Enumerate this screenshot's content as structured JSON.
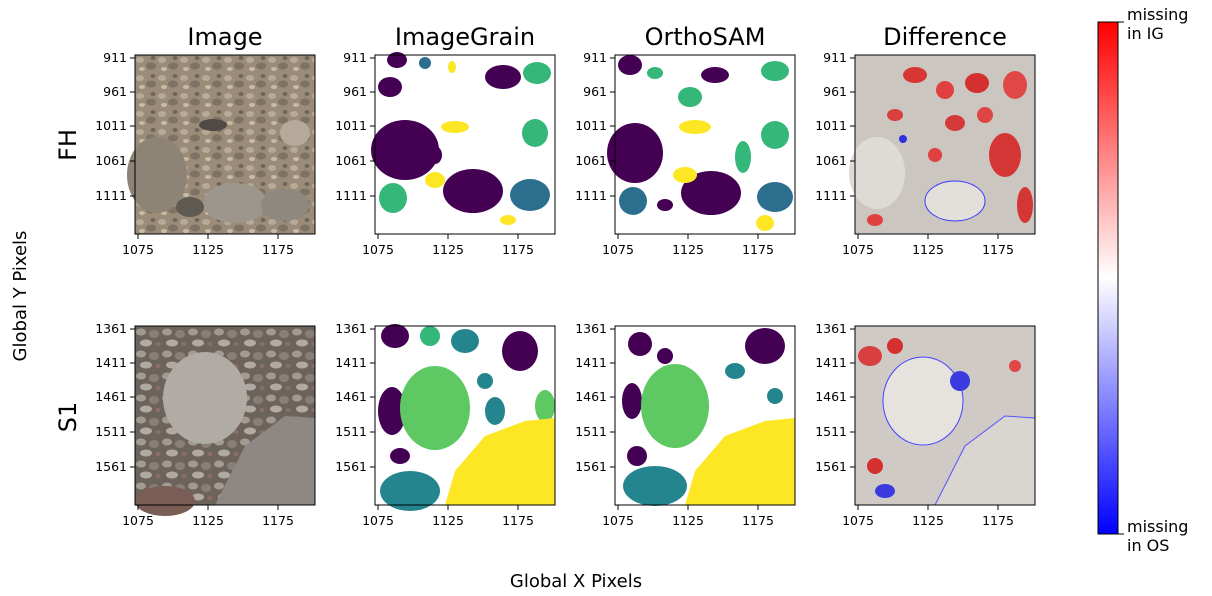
{
  "figure": {
    "column_titles": [
      "Image",
      "ImageGrain",
      "OrthoSAM",
      "Difference"
    ],
    "row_labels": [
      "FH",
      "S1"
    ],
    "xlabel": "Global X Pixels",
    "ylabel": "Global Y Pixels",
    "x_ticks": [
      "1075",
      "1125",
      "1175"
    ],
    "rows": [
      {
        "label": "FH",
        "y_ticks": [
          "911",
          "961",
          "1011",
          "1061",
          "1111"
        ]
      },
      {
        "label": "S1",
        "y_ticks": [
          "1361",
          "1411",
          "1461",
          "1511",
          "1561"
        ]
      }
    ],
    "colorbar": {
      "top_label": "missing\nin IG",
      "bottom_label": "missing\nin OS",
      "top_color": "#ff0000",
      "bottom_color": "#0000ff",
      "mid_color": "#ffffff"
    }
  },
  "chart_data": {
    "type": "heatmap",
    "panels": [
      {
        "row": "FH",
        "column": "Image",
        "xlim": [
          1075,
          1199
        ],
        "ylim": [
          911,
          1160
        ]
      },
      {
        "row": "FH",
        "column": "ImageGrain",
        "xlim": [
          1075,
          1199
        ],
        "ylim": [
          911,
          1160
        ]
      },
      {
        "row": "FH",
        "column": "OrthoSAM",
        "xlim": [
          1075,
          1199
        ],
        "ylim": [
          911,
          1160
        ]
      },
      {
        "row": "FH",
        "column": "Difference",
        "xlim": [
          1075,
          1199
        ],
        "ylim": [
          911,
          1160
        ]
      },
      {
        "row": "S1",
        "column": "Image",
        "xlim": [
          1075,
          1199
        ],
        "ylim": [
          1361,
          1610
        ]
      },
      {
        "row": "S1",
        "column": "ImageGrain",
        "xlim": [
          1075,
          1199
        ],
        "ylim": [
          1361,
          1610
        ]
      },
      {
        "row": "S1",
        "column": "OrthoSAM",
        "xlim": [
          1075,
          1199
        ],
        "ylim": [
          1361,
          1610
        ]
      },
      {
        "row": "S1",
        "column": "Difference",
        "xlim": [
          1075,
          1199
        ],
        "ylim": [
          1361,
          1610
        ]
      }
    ],
    "colormap": "bwr",
    "segment_colors": [
      "#440154",
      "#2c6e8e",
      "#25858e",
      "#35b779",
      "#5ec962",
      "#fde725"
    ]
  }
}
